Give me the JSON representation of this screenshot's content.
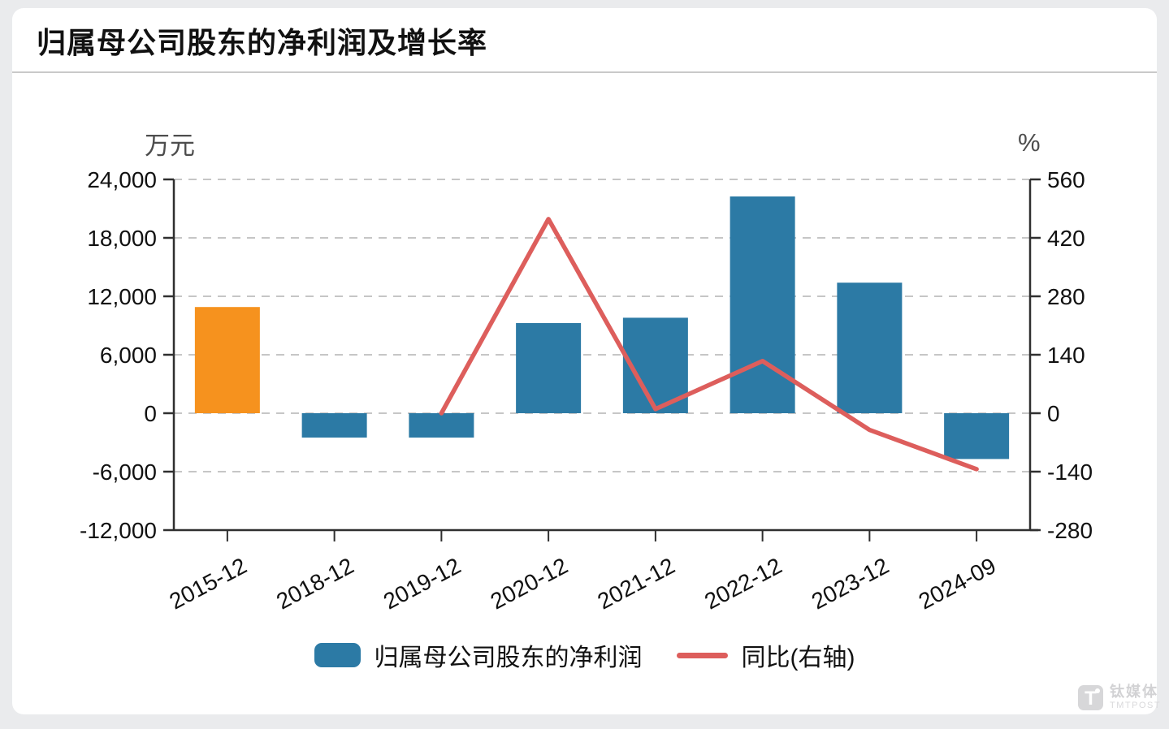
{
  "title": "归属母公司股东的净利润及增长率",
  "legend": {
    "bar_label": "归属母公司股东的净利润",
    "line_label": "同比(右轴)"
  },
  "watermark": {
    "cn": "钛媒体",
    "en": "TMTPOST"
  },
  "icons": {
    "tmtpost_logo": "T"
  },
  "colors": {
    "page_bg": "#eaebed",
    "card_bg": "#ffffff",
    "title_text": "#111111",
    "divider": "#c9c9c9",
    "bar": "#2c7aa5",
    "bar_highlight": "#f6921e",
    "line": "#dd5e5c",
    "axis": "#2f2f2f",
    "grid": "#c6c6c6",
    "tick_text": "#111111",
    "unit_text": "#4d4d4d",
    "watermark": "#d7d7d9"
  },
  "chart_data": {
    "type": "bar+line",
    "title": "归属母公司股东的净利润及增长率",
    "categories": [
      "2015-12",
      "2018-12",
      "2019-12",
      "2020-12",
      "2021-12",
      "2022-12",
      "2023-12",
      "2024-09"
    ],
    "series": [
      {
        "name": "归属母公司股东的净利润",
        "type": "bar",
        "axis": "left",
        "unit": "万元",
        "values": [
          10900,
          -2500,
          -2500,
          9250,
          9800,
          22250,
          13400,
          -4700
        ],
        "point_colors": [
          "#f6921e",
          "#2c7aa5",
          "#2c7aa5",
          "#2c7aa5",
          "#2c7aa5",
          "#2c7aa5",
          "#2c7aa5",
          "#2c7aa5"
        ]
      },
      {
        "name": "同比(右轴)",
        "type": "line",
        "axis": "right",
        "unit": "%",
        "values": [
          null,
          null,
          0,
          465,
          10,
          125,
          -40,
          -134
        ]
      }
    ],
    "left_axis": {
      "unit": "万元",
      "min": -12000,
      "max": 24000,
      "ticks": [
        24000,
        18000,
        12000,
        6000,
        0,
        -6000,
        -12000
      ],
      "tick_labels": [
        "24,000",
        "18,000",
        "12,000",
        "6,000",
        "0",
        "-6,000",
        "-12,000"
      ]
    },
    "right_axis": {
      "unit": "%",
      "min": -280,
      "max": 560,
      "ticks": [
        560,
        420,
        280,
        140,
        0,
        -140,
        -280
      ],
      "tick_labels": [
        "560",
        "420",
        "280",
        "140",
        "0",
        "-140",
        "-280"
      ]
    },
    "grid": {
      "shown": true,
      "style": "dashed"
    },
    "legend_position": "bottom",
    "x_label_rotation": -28
  }
}
